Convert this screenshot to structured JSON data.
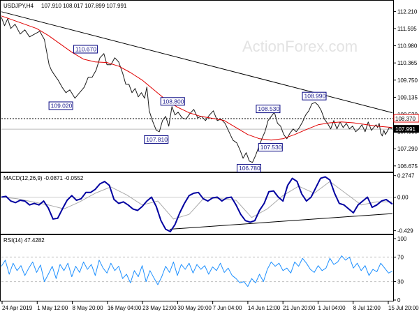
{
  "chart_data": {
    "type": "line",
    "title": "USDJPY,H4",
    "ohlc_text": "107.910 108.017 107.899 107.991",
    "watermark": "ActionForex.com",
    "colors": {
      "price": "#1a1a1a",
      "ema": "#e00000",
      "trendline": "#000000",
      "macd": "#0000a0",
      "signal": "#aaaaaa",
      "rsi": "#1e90ff",
      "label_border": "#000080",
      "last_price_box": "#000000",
      "level_box": "#e00000"
    },
    "x_tick_labels": [
      "24 Apr 2019",
      "1 May 12:00",
      "8 May 20:00",
      "16 May 04:00",
      "23 May 12:00",
      "30 May 20:00",
      "7 Jun 04:00",
      "14 Jun 12:00",
      "21 Jun 20:00",
      "1 Jul 04:00",
      "8 Jul 12:00",
      "15 Jul 20:00"
    ],
    "price_panel": {
      "y_ticks": [
        "112.210",
        "111.595",
        "110.980",
        "110.365",
        "109.750",
        "109.135",
        "108.520",
        "107.905",
        "107.290",
        "106.675"
      ],
      "ylim": [
        106.52,
        112.52
      ],
      "last_price": "107.991",
      "last_price_value": 107.991,
      "level": "108.370",
      "level_value": 108.37,
      "annotations": [
        {
          "text": "110.670",
          "x": 0.215,
          "y": 110.67
        },
        {
          "text": "109.020",
          "x": 0.152,
          "y": 109.02
        },
        {
          "text": "108.800",
          "x": 0.438,
          "y": 108.8
        },
        {
          "text": "107.810",
          "x": 0.396,
          "y": 107.81
        },
        {
          "text": "108.530",
          "x": 0.682,
          "y": 108.53
        },
        {
          "text": "107.530",
          "x": 0.688,
          "y": 107.53
        },
        {
          "text": "106.780",
          "x": 0.633,
          "y": 106.78
        },
        {
          "text": "108.990",
          "x": 0.8,
          "y": 108.99
        }
      ],
      "trendline": {
        "x": [
          0,
          1
        ],
        "y": [
          112.2,
          108.58
        ]
      },
      "series": [
        {
          "name": "price",
          "x": [
            0,
            0.008,
            0.016,
            0.024,
            0.035,
            0.048,
            0.06,
            0.072,
            0.085,
            0.098,
            0.11,
            0.122,
            0.128,
            0.135,
            0.145,
            0.155,
            0.165,
            0.175,
            0.188,
            0.2,
            0.212,
            0.222,
            0.232,
            0.242,
            0.252,
            0.262,
            0.27,
            0.28,
            0.29,
            0.3,
            0.31,
            0.318,
            0.326,
            0.334,
            0.342,
            0.35,
            0.358,
            0.366,
            0.372,
            0.378,
            0.386,
            0.396,
            0.404,
            0.412,
            0.42,
            0.428,
            0.436,
            0.444,
            0.452,
            0.462,
            0.472,
            0.482,
            0.492,
            0.502,
            0.512,
            0.522,
            0.532,
            0.542,
            0.552,
            0.562,
            0.572,
            0.582,
            0.592,
            0.602,
            0.61,
            0.618,
            0.626,
            0.634,
            0.642,
            0.65,
            0.658,
            0.666,
            0.674,
            0.682,
            0.69,
            0.698,
            0.706,
            0.714,
            0.722,
            0.73,
            0.738,
            0.746,
            0.754,
            0.762,
            0.77,
            0.778,
            0.786,
            0.794,
            0.802,
            0.81,
            0.818,
            0.826,
            0.834,
            0.842,
            0.85,
            0.858,
            0.866,
            0.874,
            0.882,
            0.89,
            0.898,
            0.906,
            0.914,
            0.922,
            0.93,
            0.938,
            0.946,
            0.952,
            0.958,
            0.962,
            0.966,
            0.97,
            0.974,
            0.978,
            0.982,
            0.986,
            0.992,
            1.0
          ],
          "y": [
            112.0,
            111.7,
            111.95,
            111.6,
            111.75,
            111.4,
            111.55,
            111.3,
            111.4,
            111.5,
            111.2,
            110.3,
            110.1,
            109.95,
            109.75,
            109.5,
            109.3,
            109.4,
            109.1,
            109.3,
            109.5,
            109.85,
            109.85,
            110.1,
            110.55,
            110.7,
            110.3,
            110.3,
            110.55,
            110.4,
            110.0,
            109.6,
            109.6,
            109.3,
            109.45,
            109.15,
            109.3,
            109.1,
            109.5,
            108.65,
            108.3,
            107.95,
            107.9,
            108.3,
            108.45,
            108.1,
            108.8,
            108.5,
            108.6,
            108.4,
            108.35,
            108.55,
            108.7,
            108.4,
            108.45,
            108.3,
            108.5,
            108.65,
            108.3,
            108.35,
            108.2,
            107.9,
            107.6,
            107.5,
            107.25,
            106.95,
            107.15,
            106.85,
            106.8,
            107.05,
            107.35,
            107.65,
            107.9,
            108.3,
            108.45,
            108.6,
            108.2,
            108.1,
            107.8,
            107.65,
            107.85,
            108.0,
            107.9,
            108.05,
            108.25,
            108.5,
            108.65,
            108.9,
            108.95,
            108.85,
            108.65,
            108.35,
            108.2,
            108.0,
            108.3,
            108.0,
            108.25,
            108.05,
            108.2,
            108.0,
            108.1,
            107.9,
            108.0,
            108.15,
            107.9,
            108.25,
            107.95,
            108.05,
            108.15,
            108.05,
            108.2,
            107.85,
            107.75,
            107.95,
            107.8,
            107.9,
            108.05,
            107.99
          ]
        },
        {
          "name": "ema",
          "x": [
            0,
            0.03,
            0.06,
            0.09,
            0.12,
            0.15,
            0.18,
            0.21,
            0.24,
            0.27,
            0.3,
            0.33,
            0.36,
            0.39,
            0.42,
            0.45,
            0.48,
            0.51,
            0.54,
            0.57,
            0.6,
            0.63,
            0.66,
            0.69,
            0.72,
            0.75,
            0.78,
            0.81,
            0.84,
            0.87,
            0.9,
            0.93,
            0.96,
            1.0
          ],
          "y": [
            112.05,
            111.9,
            111.75,
            111.6,
            111.35,
            111.05,
            110.75,
            110.5,
            110.4,
            110.38,
            110.25,
            110.02,
            109.75,
            109.4,
            109.05,
            108.78,
            108.58,
            108.45,
            108.38,
            108.3,
            108.05,
            107.8,
            107.65,
            107.6,
            107.65,
            107.8,
            107.98,
            108.15,
            108.22,
            108.25,
            108.22,
            108.16,
            108.1,
            108.05
          ]
        }
      ]
    },
    "macd_panel": {
      "label": "MACD(12,26,9) -0.0871 -0.0552",
      "y_ticks": [
        "0.2747",
        "0.00",
        "-0.429"
      ],
      "ylim": [
        -0.45,
        0.29
      ],
      "trendline": {
        "x": [
          0.43,
          1
        ],
        "y": [
          -0.41,
          -0.21
        ]
      },
      "series": [
        {
          "name": "macd",
          "x": [
            0,
            0.012,
            0.024,
            0.036,
            0.048,
            0.06,
            0.072,
            0.084,
            0.096,
            0.108,
            0.12,
            0.132,
            0.144,
            0.156,
            0.168,
            0.18,
            0.192,
            0.204,
            0.216,
            0.228,
            0.24,
            0.252,
            0.264,
            0.276,
            0.288,
            0.3,
            0.312,
            0.324,
            0.336,
            0.348,
            0.36,
            0.372,
            0.384,
            0.396,
            0.408,
            0.42,
            0.432,
            0.444,
            0.456,
            0.468,
            0.48,
            0.492,
            0.504,
            0.516,
            0.528,
            0.54,
            0.552,
            0.564,
            0.576,
            0.588,
            0.6,
            0.612,
            0.624,
            0.636,
            0.648,
            0.66,
            0.672,
            0.684,
            0.696,
            0.708,
            0.72,
            0.732,
            0.744,
            0.756,
            0.768,
            0.78,
            0.792,
            0.804,
            0.816,
            0.828,
            0.84,
            0.852,
            0.864,
            0.876,
            0.888,
            0.9,
            0.912,
            0.924,
            0.936,
            0.948,
            0.96,
            0.972,
            0.984,
            1.0
          ],
          "y": [
            0.0,
            0.01,
            -0.05,
            -0.07,
            -0.04,
            -0.05,
            -0.1,
            -0.08,
            -0.1,
            -0.05,
            -0.14,
            -0.28,
            -0.27,
            -0.15,
            -0.04,
            0.02,
            -0.04,
            -0.02,
            0.06,
            0.06,
            0.1,
            0.17,
            0.2,
            0.15,
            -0.03,
            -0.08,
            -0.06,
            -0.1,
            -0.15,
            -0.17,
            -0.12,
            -0.05,
            -0.0,
            -0.12,
            -0.3,
            -0.41,
            -0.44,
            -0.35,
            -0.2,
            -0.08,
            0.02,
            0.05,
            0.06,
            -0.02,
            -0.05,
            -0.01,
            0.0,
            -0.05,
            -0.01,
            -0.0,
            -0.1,
            -0.22,
            -0.3,
            -0.32,
            -0.3,
            -0.17,
            -0.08,
            0.07,
            0.08,
            0.0,
            -0.05,
            0.15,
            0.24,
            0.2,
            0.04,
            -0.05,
            0.0,
            0.12,
            0.24,
            0.26,
            0.22,
            0.05,
            -0.08,
            -0.1,
            -0.15,
            -0.2,
            -0.1,
            -0.05,
            0.0,
            -0.13,
            -0.1,
            -0.05,
            -0.03,
            -0.09
          ]
        },
        {
          "name": "signal",
          "x": [
            0,
            0.04,
            0.08,
            0.12,
            0.16,
            0.2,
            0.24,
            0.28,
            0.32,
            0.36,
            0.4,
            0.44,
            0.48,
            0.52,
            0.56,
            0.6,
            0.64,
            0.68,
            0.72,
            0.76,
            0.8,
            0.84,
            0.88,
            0.92,
            0.96,
            1.0
          ],
          "y": [
            0.0,
            -0.02,
            -0.06,
            -0.1,
            -0.15,
            -0.06,
            0.05,
            0.13,
            0.03,
            -0.1,
            -0.05,
            -0.28,
            -0.22,
            0.0,
            -0.02,
            -0.04,
            -0.26,
            -0.15,
            0.02,
            0.14,
            0.05,
            0.2,
            0.05,
            -0.1,
            -0.06,
            -0.06
          ]
        }
      ]
    },
    "rsi_panel": {
      "label": "RSI(14) 47.4282",
      "y_ticks": [
        "100",
        "70",
        "30",
        "0"
      ],
      "ylim": [
        0,
        100
      ],
      "levels": [
        70,
        30
      ],
      "series": [
        {
          "name": "rsi",
          "x": [
            0,
            0.01,
            0.02,
            0.03,
            0.04,
            0.05,
            0.06,
            0.07,
            0.08,
            0.09,
            0.1,
            0.11,
            0.12,
            0.13,
            0.14,
            0.15,
            0.16,
            0.17,
            0.18,
            0.19,
            0.2,
            0.21,
            0.22,
            0.23,
            0.24,
            0.25,
            0.26,
            0.27,
            0.28,
            0.29,
            0.3,
            0.31,
            0.32,
            0.33,
            0.34,
            0.35,
            0.36,
            0.37,
            0.38,
            0.39,
            0.4,
            0.41,
            0.42,
            0.43,
            0.44,
            0.45,
            0.46,
            0.47,
            0.48,
            0.49,
            0.5,
            0.51,
            0.52,
            0.53,
            0.54,
            0.55,
            0.56,
            0.57,
            0.58,
            0.59,
            0.6,
            0.61,
            0.62,
            0.63,
            0.64,
            0.65,
            0.66,
            0.67,
            0.68,
            0.69,
            0.7,
            0.71,
            0.72,
            0.73,
            0.74,
            0.75,
            0.76,
            0.77,
            0.78,
            0.79,
            0.8,
            0.81,
            0.82,
            0.83,
            0.84,
            0.85,
            0.86,
            0.87,
            0.88,
            0.89,
            0.9,
            0.91,
            0.92,
            0.93,
            0.94,
            0.95,
            0.96,
            0.97,
            0.98,
            0.99,
            1.0
          ],
          "y": [
            55,
            65,
            42,
            60,
            48,
            56,
            40,
            52,
            62,
            45,
            57,
            30,
            42,
            55,
            35,
            58,
            48,
            60,
            38,
            55,
            45,
            62,
            50,
            58,
            40,
            65,
            52,
            44,
            60,
            48,
            55,
            35,
            42,
            28,
            48,
            38,
            56,
            30,
            48,
            36,
            25,
            38,
            55,
            45,
            62,
            40,
            58,
            50,
            60,
            44,
            58,
            50,
            56,
            42,
            54,
            48,
            60,
            45,
            52,
            40,
            35,
            28,
            30,
            22,
            35,
            28,
            42,
            30,
            50,
            62,
            55,
            60,
            48,
            52,
            44,
            62,
            55,
            68,
            60,
            50,
            45,
            56,
            48,
            52,
            68,
            58,
            62,
            72,
            65,
            70,
            52,
            60,
            48,
            56,
            40,
            50,
            46,
            60,
            52,
            44,
            47
          ]
        }
      ]
    }
  }
}
